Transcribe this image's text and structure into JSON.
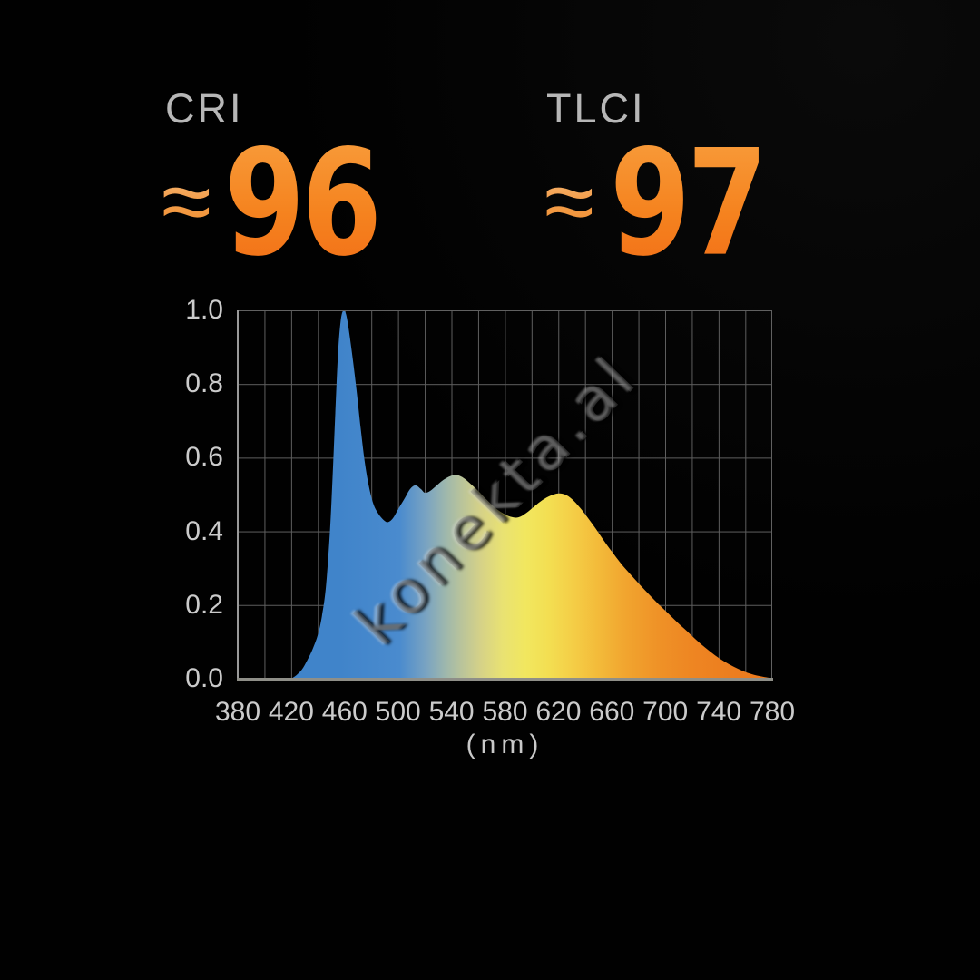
{
  "metrics": [
    {
      "label": "CRI",
      "approx_symbol": "≈",
      "value": "96"
    },
    {
      "label": "TLCI",
      "approx_symbol": "≈",
      "value": "97"
    }
  ],
  "watermark": {
    "text": "konekta.al"
  },
  "colors": {
    "background": "#010101",
    "metric_label_gray": "#b7b7b7",
    "metric_value_orange_top": "#f89d3c",
    "metric_value_orange_bottom": "#f26e17",
    "grid_line": "#5e5e5e",
    "axis_spine": "#8f8f88",
    "tick_text": "#cbcbcb"
  },
  "chart_data": {
    "type": "area",
    "title": "",
    "xlabel": "(nm)",
    "ylabel": "",
    "xlim": [
      380,
      780
    ],
    "ylim": [
      0.0,
      1.0
    ],
    "grid": {
      "x_step_nm": 20,
      "y_step": 0.2,
      "visible": true
    },
    "legend": "none",
    "x_ticks": [
      "380",
      "420",
      "460",
      "500",
      "540",
      "580",
      "620",
      "660",
      "700",
      "740",
      "780"
    ],
    "y_ticks": [
      "1.0",
      "0.8",
      "0.6",
      "0.4",
      "0.2",
      "0.0"
    ],
    "description": "Normalized spectral power distribution; blue LED peak at ~458nm reaching 1.0, phosphor hump 500-660nm around 0.42-0.55, tail to zero near 775nm",
    "points": [
      [
        420,
        0.0
      ],
      [
        424,
        0.01
      ],
      [
        428,
        0.025
      ],
      [
        432,
        0.05
      ],
      [
        436,
        0.08
      ],
      [
        440,
        0.12
      ],
      [
        443,
        0.17
      ],
      [
        446,
        0.25
      ],
      [
        449,
        0.4
      ],
      [
        451,
        0.55
      ],
      [
        453,
        0.72
      ],
      [
        455,
        0.88
      ],
      [
        457,
        0.97
      ],
      [
        459,
        1.0
      ],
      [
        461,
        0.99
      ],
      [
        463,
        0.95
      ],
      [
        466,
        0.87
      ],
      [
        469,
        0.78
      ],
      [
        472,
        0.68
      ],
      [
        475,
        0.59
      ],
      [
        478,
        0.525
      ],
      [
        481,
        0.48
      ],
      [
        484,
        0.455
      ],
      [
        488,
        0.435
      ],
      [
        492,
        0.425
      ],
      [
        496,
        0.435
      ],
      [
        500,
        0.46
      ],
      [
        505,
        0.49
      ],
      [
        509,
        0.515
      ],
      [
        513,
        0.525
      ],
      [
        517,
        0.515
      ],
      [
        520,
        0.505
      ],
      [
        524,
        0.51
      ],
      [
        529,
        0.525
      ],
      [
        534,
        0.54
      ],
      [
        539,
        0.55
      ],
      [
        544,
        0.553
      ],
      [
        549,
        0.545
      ],
      [
        554,
        0.53
      ],
      [
        560,
        0.51
      ],
      [
        566,
        0.487
      ],
      [
        572,
        0.466
      ],
      [
        578,
        0.45
      ],
      [
        584,
        0.44
      ],
      [
        590,
        0.438
      ],
      [
        596,
        0.45
      ],
      [
        602,
        0.468
      ],
      [
        608,
        0.485
      ],
      [
        614,
        0.497
      ],
      [
        620,
        0.503
      ],
      [
        625,
        0.5
      ],
      [
        630,
        0.488
      ],
      [
        636,
        0.465
      ],
      [
        642,
        0.437
      ],
      [
        648,
        0.407
      ],
      [
        654,
        0.375
      ],
      [
        660,
        0.345
      ],
      [
        667,
        0.312
      ],
      [
        674,
        0.283
      ],
      [
        681,
        0.255
      ],
      [
        688,
        0.228
      ],
      [
        695,
        0.202
      ],
      [
        702,
        0.178
      ],
      [
        709,
        0.153
      ],
      [
        716,
        0.13
      ],
      [
        723,
        0.106
      ],
      [
        730,
        0.084
      ],
      [
        737,
        0.064
      ],
      [
        744,
        0.047
      ],
      [
        751,
        0.033
      ],
      [
        758,
        0.021
      ],
      [
        765,
        0.012
      ],
      [
        772,
        0.006
      ],
      [
        778,
        0.002
      ],
      [
        780,
        0.0
      ]
    ],
    "spectrum_gradient": [
      {
        "nm": 420,
        "color": "#4084ca"
      },
      {
        "nm": 470,
        "color": "#4a8bce"
      },
      {
        "nm": 492,
        "color": "#79a3c2"
      },
      {
        "nm": 508,
        "color": "#9db7ad"
      },
      {
        "nm": 522,
        "color": "#bac49a"
      },
      {
        "nm": 538,
        "color": "#d6d287"
      },
      {
        "nm": 556,
        "color": "#e9e272"
      },
      {
        "nm": 575,
        "color": "#f1e75f"
      },
      {
        "nm": 595,
        "color": "#f3de51"
      },
      {
        "nm": 615,
        "color": "#f4cd46"
      },
      {
        "nm": 635,
        "color": "#f3bb3a"
      },
      {
        "nm": 658,
        "color": "#f1a52f"
      },
      {
        "nm": 685,
        "color": "#ef9227"
      },
      {
        "nm": 715,
        "color": "#ee8522"
      },
      {
        "nm": 750,
        "color": "#ec7d1f"
      },
      {
        "nm": 780,
        "color": "#eb791d"
      }
    ]
  }
}
